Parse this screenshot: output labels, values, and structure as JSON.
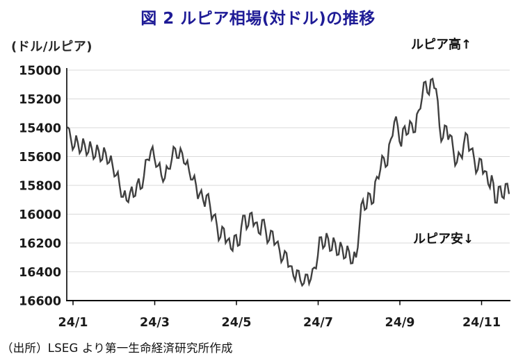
{
  "title": "図 2 ルピア相場(対ドル)の推移",
  "unit_label": "(ドル/ルピア)",
  "annotations": {
    "high": "ルピア高↑",
    "low": "ルピア安↓"
  },
  "source": "（出所）LSEG より第一生命経済研究所作成",
  "colors": {
    "title_blue": "#1e1b96",
    "line": "#3f3f3f",
    "grid": "#d9d9d9",
    "axis": "#000000",
    "tick_text": "#1a1a1a"
  },
  "chart_data": {
    "type": "line",
    "title": "図 2 ルピア相場(対ドル)の推移",
    "ylabel": "(ドル/ルピア)",
    "y_axis_inverted": true,
    "y_range": [
      15000,
      16600
    ],
    "y_ticks": [
      15000,
      15200,
      15400,
      15600,
      15800,
      16000,
      16200,
      16400,
      16600
    ],
    "x_tick_labels": [
      "24/1",
      "24/3",
      "24/5",
      "24/7",
      "24/9",
      "24/11"
    ],
    "grid": "horizontal",
    "legend": "none",
    "series": [
      {
        "name": "ドル/ルピア",
        "values": [
          15395,
          15480,
          15530,
          15505,
          15555,
          15520,
          15570,
          15545,
          15600,
          15560,
          15620,
          15575,
          15640,
          15665,
          15730,
          15800,
          15880,
          15905,
          15850,
          15880,
          15790,
          15825,
          15735,
          15620,
          15560,
          15610,
          15665,
          15730,
          15750,
          15685,
          15620,
          15545,
          15610,
          15575,
          15655,
          15700,
          15760,
          15800,
          15860,
          15900,
          15870,
          15940,
          16010,
          16080,
          16160,
          16100,
          16180,
          16240,
          16150,
          16220,
          16090,
          16010,
          16080,
          15990,
          16060,
          16130,
          16040,
          16110,
          16180,
          16120,
          16200,
          16250,
          16310,
          16270,
          16360,
          16430,
          16390,
          16460,
          16480,
          16420,
          16450,
          16370,
          16290,
          16160,
          16220,
          16170,
          16250,
          16200,
          16280,
          16230,
          16300,
          16260,
          16340,
          16300,
          16080,
          15900,
          15960,
          15860,
          15920,
          15740,
          15690,
          15610,
          15660,
          15480,
          15360,
          15390,
          15530,
          15390,
          15440,
          15370,
          15430,
          15280,
          15190,
          15080,
          15170,
          15060,
          15130,
          15390,
          15470,
          15390,
          15450,
          15560,
          15640,
          15590,
          15510,
          15450,
          15550,
          15620,
          15690,
          15620,
          15700,
          15790,
          15730,
          15920,
          15810,
          15880,
          15790,
          15860
        ]
      }
    ]
  }
}
